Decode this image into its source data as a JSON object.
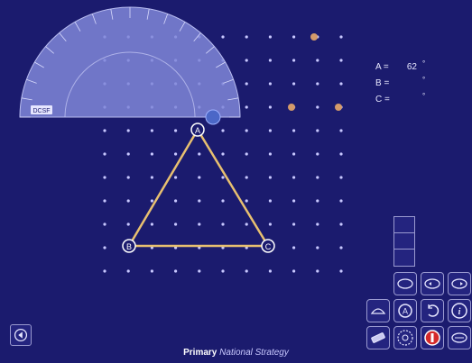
{
  "angles": {
    "a_label": "A =",
    "a_value": "62",
    "b_label": "B =",
    "c_label": "C =",
    "degree_symbol": "°"
  },
  "triangle": {
    "vertex_a": "A",
    "vertex_b": "B",
    "vertex_c": "C"
  },
  "protractor": {
    "logo_text": "DCSF"
  },
  "footer": {
    "primary": "Primary",
    "national_strategy": "National Strategy"
  },
  "toolbar": {
    "tools": [
      "clear-icon",
      "undo-icon",
      "redo-icon",
      "grid-icon",
      "label-icon",
      "rotate-icon",
      "info-icon",
      "eraser-icon",
      "protractor-icon",
      "stop-icon",
      "measure-icon"
    ]
  },
  "colors": {
    "background": "#1b1b6e",
    "triangle": "#e8c070",
    "dot": "#c8c8ff",
    "protractor": "#7f86d8"
  }
}
